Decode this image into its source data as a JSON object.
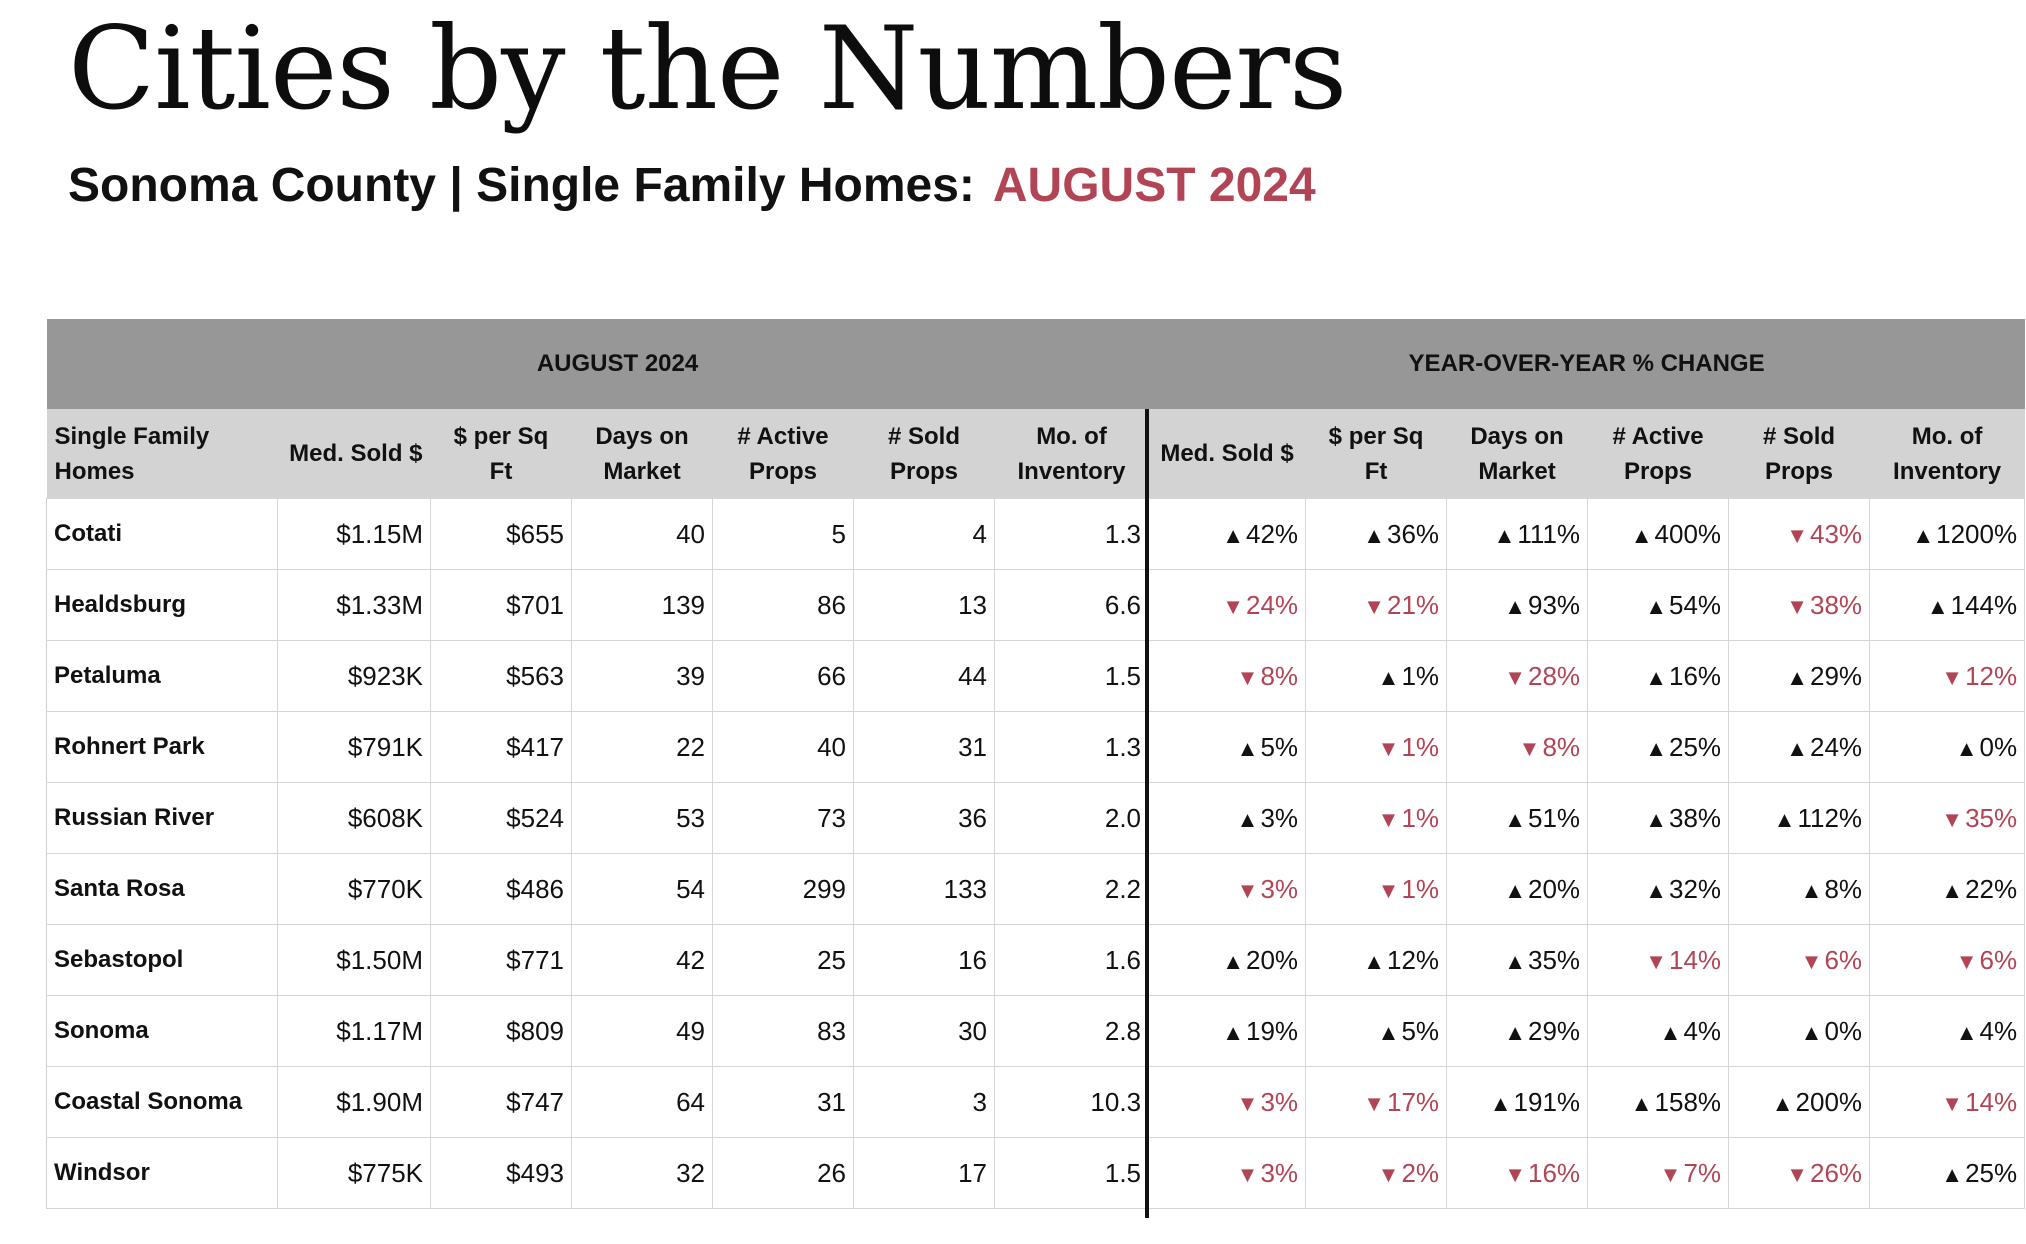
{
  "header": {
    "title": "Cities by the Numbers",
    "subtitle_prefix": "Sonoma County | Single Family Homes:",
    "subtitle_month": "AUGUST 2024",
    "accent_color": "#b24555"
  },
  "table": {
    "group_headers": {
      "current": "AUGUST 2024",
      "yoy": "YEAR-OVER-YEAR % CHANGE"
    },
    "column_headers": {
      "city": [
        "Single Family",
        "Homes"
      ],
      "med_sold": [
        "Med. Sold $"
      ],
      "ppsf": [
        "$ per Sq",
        "Ft"
      ],
      "dom": [
        "Days on",
        "Market"
      ],
      "active": [
        "# Active",
        "Props"
      ],
      "sold": [
        "# Sold",
        "Props"
      ],
      "inventory": [
        "Mo. of",
        "Inventory"
      ],
      "yoy_med_sold": [
        "Med. Sold $"
      ],
      "yoy_ppsf": [
        "$ per Sq",
        "Ft"
      ],
      "yoy_dom": [
        "Days on",
        "Market"
      ],
      "yoy_active": [
        "# Active",
        "Props"
      ],
      "yoy_sold": [
        "# Sold",
        "Props"
      ],
      "yoy_inventory": [
        "Mo. of",
        "Inventory"
      ]
    },
    "up_arrow": "▲",
    "down_arrow": "▼",
    "up_color": "#111111",
    "down_color": "#b24555",
    "rows": [
      {
        "city": "Cotati",
        "med_sold": "$1.15M",
        "ppsf": "$655",
        "dom": "40",
        "active": "5",
        "sold": "4",
        "inventory": "1.3",
        "yoy": [
          {
            "dir": "up",
            "value": "42%"
          },
          {
            "dir": "up",
            "value": "36%"
          },
          {
            "dir": "up",
            "value": "111%"
          },
          {
            "dir": "up",
            "value": "400%"
          },
          {
            "dir": "down",
            "value": "43%"
          },
          {
            "dir": "up",
            "value": "1200%"
          }
        ]
      },
      {
        "city": "Healdsburg",
        "med_sold": "$1.33M",
        "ppsf": "$701",
        "dom": "139",
        "active": "86",
        "sold": "13",
        "inventory": "6.6",
        "yoy": [
          {
            "dir": "down",
            "value": "24%"
          },
          {
            "dir": "down",
            "value": "21%"
          },
          {
            "dir": "up",
            "value": "93%"
          },
          {
            "dir": "up",
            "value": "54%"
          },
          {
            "dir": "down",
            "value": "38%"
          },
          {
            "dir": "up",
            "value": "144%"
          }
        ]
      },
      {
        "city": "Petaluma",
        "med_sold": "$923K",
        "ppsf": "$563",
        "dom": "39",
        "active": "66",
        "sold": "44",
        "inventory": "1.5",
        "yoy": [
          {
            "dir": "down",
            "value": "8%"
          },
          {
            "dir": "up",
            "value": "1%"
          },
          {
            "dir": "down",
            "value": "28%"
          },
          {
            "dir": "up",
            "value": "16%"
          },
          {
            "dir": "up",
            "value": "29%"
          },
          {
            "dir": "down",
            "value": "12%"
          }
        ]
      },
      {
        "city": "Rohnert Park",
        "med_sold": "$791K",
        "ppsf": "$417",
        "dom": "22",
        "active": "40",
        "sold": "31",
        "inventory": "1.3",
        "yoy": [
          {
            "dir": "up",
            "value": "5%"
          },
          {
            "dir": "down",
            "value": "1%"
          },
          {
            "dir": "down",
            "value": "8%"
          },
          {
            "dir": "up",
            "value": "25%"
          },
          {
            "dir": "up",
            "value": "24%"
          },
          {
            "dir": "up",
            "value": "0%"
          }
        ]
      },
      {
        "city": "Russian River",
        "med_sold": "$608K",
        "ppsf": "$524",
        "dom": "53",
        "active": "73",
        "sold": "36",
        "inventory": "2.0",
        "yoy": [
          {
            "dir": "up",
            "value": "3%"
          },
          {
            "dir": "down",
            "value": "1%"
          },
          {
            "dir": "up",
            "value": "51%"
          },
          {
            "dir": "up",
            "value": "38%"
          },
          {
            "dir": "up",
            "value": "112%"
          },
          {
            "dir": "down",
            "value": "35%"
          }
        ]
      },
      {
        "city": "Santa Rosa",
        "med_sold": "$770K",
        "ppsf": "$486",
        "dom": "54",
        "active": "299",
        "sold": "133",
        "inventory": "2.2",
        "yoy": [
          {
            "dir": "down",
            "value": "3%"
          },
          {
            "dir": "down",
            "value": "1%"
          },
          {
            "dir": "up",
            "value": "20%"
          },
          {
            "dir": "up",
            "value": "32%"
          },
          {
            "dir": "up",
            "value": "8%"
          },
          {
            "dir": "up",
            "value": "22%"
          }
        ]
      },
      {
        "city": "Sebastopol",
        "med_sold": "$1.50M",
        "ppsf": "$771",
        "dom": "42",
        "active": "25",
        "sold": "16",
        "inventory": "1.6",
        "yoy": [
          {
            "dir": "up",
            "value": "20%"
          },
          {
            "dir": "up",
            "value": "12%"
          },
          {
            "dir": "up",
            "value": "35%"
          },
          {
            "dir": "down",
            "value": "14%"
          },
          {
            "dir": "down",
            "value": "6%"
          },
          {
            "dir": "down",
            "value": "6%"
          }
        ]
      },
      {
        "city": "Sonoma",
        "med_sold": "$1.17M",
        "ppsf": "$809",
        "dom": "49",
        "active": "83",
        "sold": "30",
        "inventory": "2.8",
        "yoy": [
          {
            "dir": "up",
            "value": "19%"
          },
          {
            "dir": "up",
            "value": "5%"
          },
          {
            "dir": "up",
            "value": "29%"
          },
          {
            "dir": "up",
            "value": "4%"
          },
          {
            "dir": "up",
            "value": "0%"
          },
          {
            "dir": "up",
            "value": "4%"
          }
        ]
      },
      {
        "city": "Coastal Sonoma",
        "med_sold": "$1.90M",
        "ppsf": "$747",
        "dom": "64",
        "active": "31",
        "sold": "3",
        "inventory": "10.3",
        "yoy": [
          {
            "dir": "down",
            "value": "3%"
          },
          {
            "dir": "down",
            "value": "17%"
          },
          {
            "dir": "up",
            "value": "191%"
          },
          {
            "dir": "up",
            "value": "158%"
          },
          {
            "dir": "up",
            "value": "200%"
          },
          {
            "dir": "down",
            "value": "14%"
          }
        ]
      },
      {
        "city": "Windsor",
        "med_sold": "$775K",
        "ppsf": "$493",
        "dom": "32",
        "active": "26",
        "sold": "17",
        "inventory": "1.5",
        "yoy": [
          {
            "dir": "down",
            "value": "3%"
          },
          {
            "dir": "down",
            "value": "2%"
          },
          {
            "dir": "down",
            "value": "16%"
          },
          {
            "dir": "down",
            "value": "7%"
          },
          {
            "dir": "down",
            "value": "26%"
          },
          {
            "dir": "up",
            "value": "25%"
          }
        ]
      }
    ]
  }
}
